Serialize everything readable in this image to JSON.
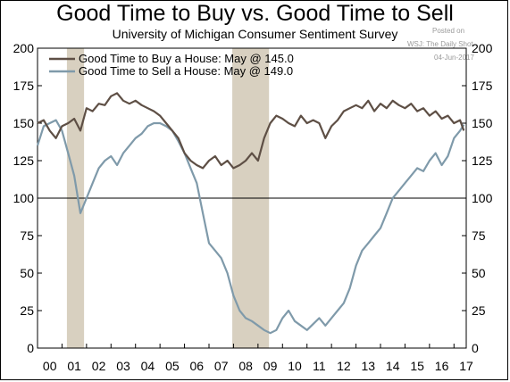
{
  "chart_data": {
    "type": "line",
    "title": "Good Time to Buy vs. Good Time to Sell",
    "subtitle": "University of Michigan Consumer Sentiment Survey",
    "watermark": [
      "Posted on",
      "WSJ: The Daily Shot",
      "04-Jun-2017"
    ],
    "x_ticks": [
      "00",
      "01",
      "02",
      "03",
      "04",
      "05",
      "06",
      "07",
      "08",
      "09",
      "10",
      "11",
      "12",
      "13",
      "14",
      "15",
      "16",
      "17"
    ],
    "y_ticks": [
      0,
      25,
      50,
      75,
      100,
      125,
      150,
      175,
      200
    ],
    "ylim": [
      0,
      200
    ],
    "xlim": [
      2000.0,
      2017.5
    ],
    "reference_line": 100,
    "recessions": [
      [
        2001.2,
        2001.9
      ],
      [
        2007.95,
        2009.45
      ]
    ],
    "recession_color": "#d8d0c0",
    "grid": false,
    "legend_position": "top-left",
    "series": [
      {
        "name": "Good Time to Buy a House: May @ 145.0",
        "color": "#5e4f45",
        "x": [
          2000.0,
          2000.25,
          2000.5,
          2000.75,
          2001.0,
          2001.25,
          2001.5,
          2001.75,
          2002.0,
          2002.25,
          2002.5,
          2002.75,
          2003.0,
          2003.25,
          2003.5,
          2003.75,
          2004.0,
          2004.25,
          2004.5,
          2004.75,
          2005.0,
          2005.25,
          2005.5,
          2005.75,
          2006.0,
          2006.25,
          2006.5,
          2006.75,
          2007.0,
          2007.25,
          2007.5,
          2007.75,
          2008.0,
          2008.25,
          2008.5,
          2008.75,
          2009.0,
          2009.25,
          2009.5,
          2009.75,
          2010.0,
          2010.25,
          2010.5,
          2010.75,
          2011.0,
          2011.25,
          2011.5,
          2011.75,
          2012.0,
          2012.25,
          2012.5,
          2012.75,
          2013.0,
          2013.25,
          2013.5,
          2013.75,
          2014.0,
          2014.25,
          2014.5,
          2014.75,
          2015.0,
          2015.25,
          2015.5,
          2015.75,
          2016.0,
          2016.25,
          2016.5,
          2016.75,
          2017.0,
          2017.25,
          2017.4
        ],
        "values": [
          150,
          152,
          145,
          140,
          148,
          150,
          153,
          145,
          160,
          158,
          163,
          162,
          168,
          170,
          165,
          163,
          165,
          162,
          160,
          158,
          155,
          150,
          145,
          140,
          130,
          125,
          122,
          120,
          125,
          128,
          122,
          125,
          120,
          122,
          125,
          130,
          125,
          140,
          150,
          155,
          153,
          150,
          148,
          155,
          150,
          152,
          150,
          140,
          148,
          152,
          158,
          160,
          162,
          160,
          165,
          158,
          163,
          160,
          165,
          162,
          160,
          163,
          158,
          160,
          155,
          158,
          153,
          155,
          150,
          152,
          145
        ]
      },
      {
        "name": "Good Time to Sell a House: May @ 149.0",
        "color": "#7f9aaa",
        "x": [
          2000.0,
          2000.25,
          2000.5,
          2000.75,
          2001.0,
          2001.25,
          2001.5,
          2001.75,
          2002.0,
          2002.25,
          2002.5,
          2002.75,
          2003.0,
          2003.25,
          2003.5,
          2003.75,
          2004.0,
          2004.25,
          2004.5,
          2004.75,
          2005.0,
          2005.25,
          2005.5,
          2005.75,
          2006.0,
          2006.25,
          2006.5,
          2006.75,
          2007.0,
          2007.25,
          2007.5,
          2007.75,
          2008.0,
          2008.25,
          2008.5,
          2008.75,
          2009.0,
          2009.25,
          2009.5,
          2009.75,
          2010.0,
          2010.25,
          2010.5,
          2010.75,
          2011.0,
          2011.25,
          2011.5,
          2011.75,
          2012.0,
          2012.25,
          2012.5,
          2012.75,
          2013.0,
          2013.25,
          2013.5,
          2013.75,
          2014.0,
          2014.25,
          2014.5,
          2014.75,
          2015.0,
          2015.25,
          2015.5,
          2015.75,
          2016.0,
          2016.25,
          2016.5,
          2016.75,
          2017.0,
          2017.25,
          2017.4
        ],
        "values": [
          135,
          148,
          150,
          152,
          145,
          130,
          115,
          90,
          100,
          110,
          120,
          125,
          128,
          122,
          130,
          135,
          140,
          143,
          148,
          150,
          150,
          148,
          145,
          138,
          130,
          120,
          110,
          90,
          70,
          65,
          60,
          50,
          35,
          25,
          20,
          18,
          15,
          12,
          10,
          12,
          20,
          25,
          18,
          15,
          12,
          16,
          20,
          15,
          20,
          25,
          30,
          40,
          55,
          65,
          70,
          75,
          80,
          90,
          100,
          105,
          110,
          115,
          120,
          118,
          125,
          130,
          122,
          128,
          140,
          145,
          149
        ]
      }
    ]
  }
}
